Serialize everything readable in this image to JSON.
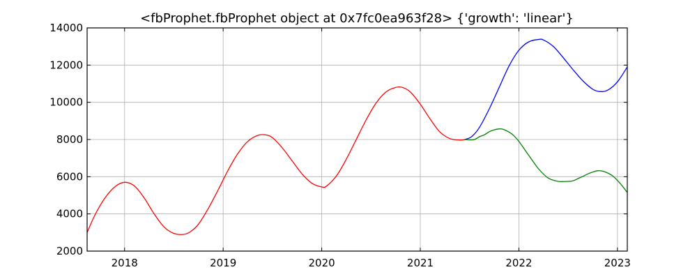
{
  "chart_data": {
    "type": "line",
    "title": "<fbProphet.fbProphet object at 0x7fc0ea963f28> {'growth': 'linear'}",
    "xlabel": "",
    "ylabel": "",
    "xlim": [
      2017.62,
      2023.1
    ],
    "ylim": [
      2000,
      14000
    ],
    "grid": true,
    "x_ticks": [
      2018,
      2019,
      2020,
      2021,
      2022,
      2023
    ],
    "x_tick_labels": [
      "2018",
      "2019",
      "2020",
      "2021",
      "2022",
      "2023"
    ],
    "y_ticks": [
      2000,
      4000,
      6000,
      8000,
      10000,
      12000,
      14000
    ],
    "y_tick_labels": [
      "2000",
      "4000",
      "6000",
      "8000",
      "10000",
      "12000",
      "14000"
    ],
    "series": [
      {
        "color": "#ff0000",
        "x": [
          2017.62,
          2017.7,
          2017.8,
          2017.9,
          2018.0,
          2018.1,
          2018.2,
          2018.3,
          2018.4,
          2018.5,
          2018.6,
          2018.67,
          2018.75,
          2018.85,
          2018.95,
          2019.05,
          2019.15,
          2019.25,
          2019.35,
          2019.43,
          2019.5,
          2019.6,
          2019.7,
          2019.8,
          2019.9,
          2020.0,
          2020.05,
          2020.15,
          2020.25,
          2020.35,
          2020.45,
          2020.55,
          2020.65,
          2020.75,
          2020.82,
          2020.9,
          2021.0,
          2021.1,
          2021.2,
          2021.3,
          2021.4,
          2021.46
        ],
        "y": [
          3000,
          3950,
          4850,
          5450,
          5700,
          5500,
          4850,
          4000,
          3300,
          2950,
          2900,
          3050,
          3450,
          4300,
          5300,
          6350,
          7250,
          7900,
          8220,
          8250,
          8100,
          7550,
          6850,
          6150,
          5650,
          5450,
          5500,
          6050,
          6950,
          8000,
          9050,
          9950,
          10550,
          10800,
          10800,
          10550,
          9900,
          9100,
          8400,
          8050,
          7970,
          8000
        ]
      },
      {
        "color": "#0000ff",
        "x": [
          2021.45,
          2021.52,
          2021.6,
          2021.7,
          2021.8,
          2021.9,
          2022.0,
          2022.1,
          2022.2,
          2022.25,
          2022.35,
          2022.45,
          2022.55,
          2022.65,
          2022.75,
          2022.82,
          2022.9,
          2023.0,
          2023.1
        ],
        "y": [
          8000,
          8150,
          8650,
          9650,
          10800,
          11950,
          12800,
          13250,
          13380,
          13350,
          13000,
          12400,
          11750,
          11150,
          10700,
          10580,
          10650,
          11100,
          11900
        ]
      },
      {
        "color": "#008000",
        "x": [
          2021.45,
          2021.5,
          2021.55,
          2021.6,
          2021.65,
          2021.7,
          2021.75,
          2021.8,
          2021.84,
          2021.9,
          2021.95,
          2022.0,
          2022.1,
          2022.2,
          2022.3,
          2022.4,
          2022.5,
          2022.55,
          2022.6,
          2022.65,
          2022.7,
          2022.75,
          2022.8,
          2022.85,
          2022.9,
          2022.95,
          2023.0,
          2023.05,
          2023.1
        ],
        "y": [
          8000,
          7980,
          8000,
          8150,
          8250,
          8420,
          8520,
          8570,
          8550,
          8400,
          8200,
          7900,
          7150,
          6420,
          5920,
          5750,
          5750,
          5780,
          5900,
          6020,
          6150,
          6250,
          6320,
          6300,
          6200,
          6050,
          5800,
          5500,
          5150
        ]
      }
    ]
  }
}
